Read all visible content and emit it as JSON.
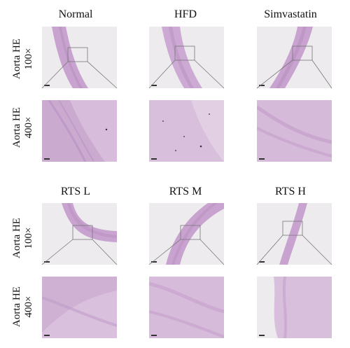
{
  "figure": {
    "groups_top": [
      "Normal",
      "HFD",
      "Simvastatin"
    ],
    "groups_bottom": [
      "RTS L",
      "RTS M",
      "RTS H"
    ],
    "row_labels": {
      "low_mag": [
        "Aorta HE",
        "100×"
      ],
      "high_mag": [
        "Aorta HE",
        "400×"
      ]
    }
  },
  "colors": {
    "tissue": "#c9a3cf",
    "tissue_dark": "#b98fc2",
    "background_slide": "#eeebef",
    "scalebar": "#333333",
    "zoom_box": "#777777"
  }
}
